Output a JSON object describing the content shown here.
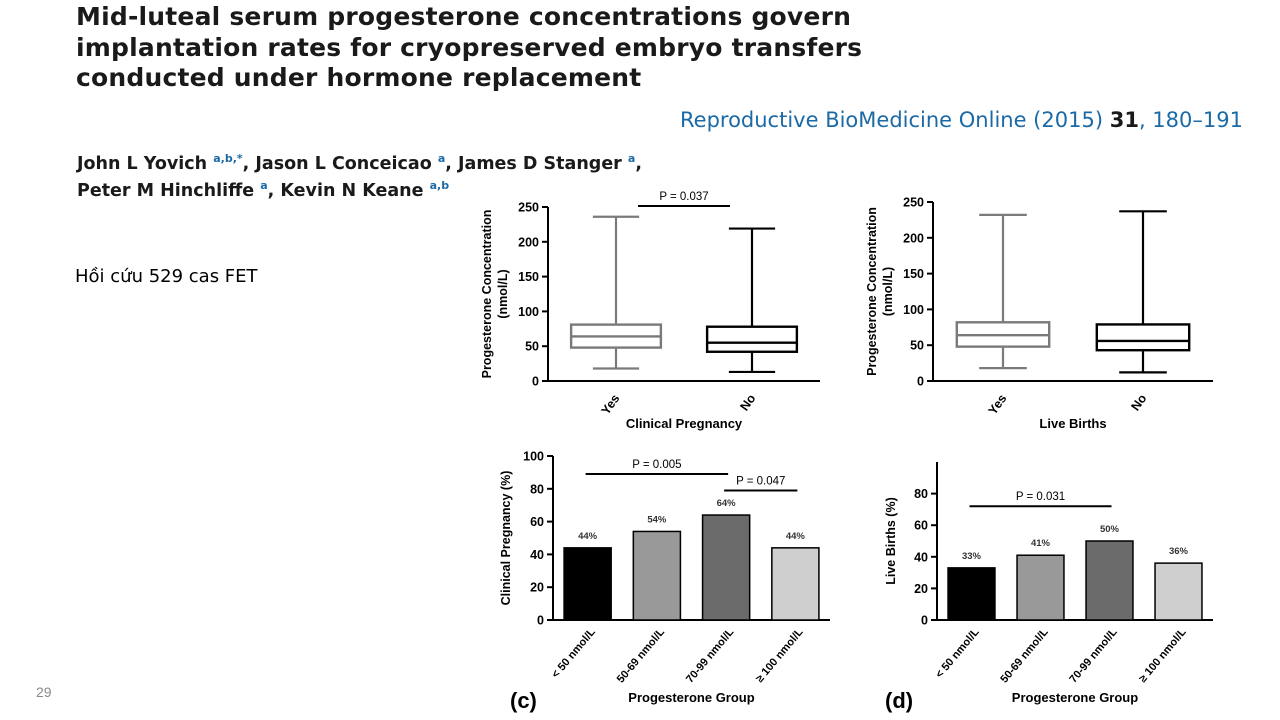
{
  "slide": {
    "title": "Mid-luteal serum progesterone concentrations govern implantation rates for cryopreserved embryo transfers conducted under hormone replacement",
    "journal": {
      "name": "Reproductive BioMedicine Online (2015)",
      "volume": "31",
      "pages": "180–191"
    },
    "authors": [
      {
        "name": "John L Yovich",
        "aff": "a,b,*",
        "sep": ", "
      },
      {
        "name": "Jason L Conceicao",
        "aff": "a",
        "sep": ", "
      },
      {
        "name": "James D Stanger",
        "aff": "a",
        "sep": ", "
      },
      {
        "name": "Peter M Hinchliffe",
        "aff": "a",
        "sep": ", "
      },
      {
        "name": "Kevin N Keane",
        "aff": "a,b",
        "sep": ""
      }
    ],
    "note": "Hồi cứu 529 cas FET",
    "page_number": "29"
  },
  "chart_data": [
    {
      "type": "boxplot",
      "panel": "",
      "xlabel": "Clinical Pregnancy",
      "ylabel_lines": [
        "Progesterone Concentration",
        "(nmol/L)"
      ],
      "ylim": [
        0,
        250
      ],
      "yticks": [
        0,
        50,
        100,
        150,
        200,
        250
      ],
      "categories": [
        "Yes",
        "No"
      ],
      "boxes": [
        {
          "category": "Yes",
          "min": 18,
          "q1": 48,
          "median": 64,
          "q3": 81,
          "max": 236,
          "color": "#7a7a7a"
        },
        {
          "category": "No",
          "min": 13,
          "q1": 42,
          "median": 55,
          "q3": 78,
          "max": 219,
          "color": "#000000"
        }
      ],
      "brackets": [
        {
          "from": 0,
          "to": 1,
          "label": "P = 0.037"
        }
      ]
    },
    {
      "type": "boxplot",
      "panel": "",
      "xlabel": "Live Births",
      "ylabel_lines": [
        "Progesterone Concentration",
        "(nmol/L)"
      ],
      "ylim": [
        0,
        250
      ],
      "yticks": [
        0,
        50,
        100,
        150,
        200,
        250
      ],
      "categories": [
        "Yes",
        "No"
      ],
      "boxes": [
        {
          "category": "Yes",
          "min": 18,
          "q1": 48,
          "median": 64,
          "q3": 82,
          "max": 232,
          "color": "#7a7a7a"
        },
        {
          "category": "No",
          "min": 12,
          "q1": 43,
          "median": 56,
          "q3": 79,
          "max": 237,
          "color": "#000000"
        }
      ],
      "brackets": []
    },
    {
      "type": "bar",
      "panel": "(c)",
      "xlabel": "Progesterone Group",
      "ylabel": "Clinical Pregnancy (%)",
      "ylim": [
        0,
        100
      ],
      "yticks": [
        0,
        20,
        40,
        60,
        80,
        100
      ],
      "categories": [
        "< 50 nmol/L",
        "50-69 nmol/L",
        "70-99 nmol/L",
        "≥ 100 nmol/L"
      ],
      "values": [
        44,
        54,
        64,
        44
      ],
      "value_labels": [
        "44%",
        "54%",
        "64%",
        "44%"
      ],
      "colors": [
        "#000000",
        "#999999",
        "#6b6b6b",
        "#cfcfcf"
      ],
      "brackets": [
        {
          "from": 0,
          "to": 2,
          "label": "P = 0.005",
          "level": 89
        },
        {
          "from": 2,
          "to": 3,
          "label": "P = 0.047",
          "level": 79
        }
      ]
    },
    {
      "type": "bar",
      "panel": "(d)",
      "xlabel": "Progesterone Group",
      "ylabel": "Live Births (%)",
      "ylim": [
        0,
        100
      ],
      "yticks": [
        0,
        20,
        40,
        60,
        80
      ],
      "categories": [
        "< 50 nmol/L",
        "50-69 nmol/L",
        "70-99 nmol/L",
        "≥ 100 nmol/L"
      ],
      "values": [
        33,
        41,
        50,
        36
      ],
      "value_labels": [
        "33%",
        "41%",
        "50%",
        "36%"
      ],
      "colors": [
        "#000000",
        "#999999",
        "#6b6b6b",
        "#cfcfcf"
      ],
      "brackets": [
        {
          "from": 0,
          "to": 2,
          "label": "P = 0.031",
          "level": 72
        }
      ]
    }
  ]
}
